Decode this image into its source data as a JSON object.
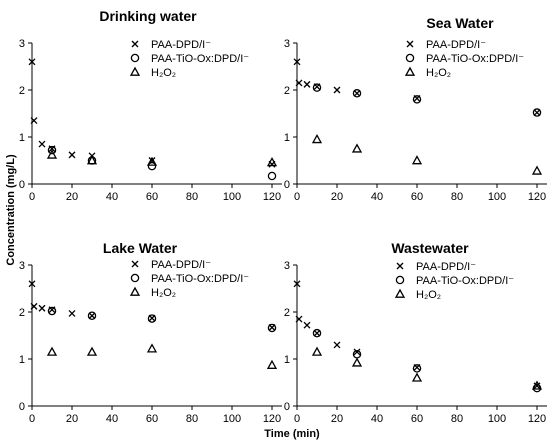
{
  "figure": {
    "ylabel": "Concentration (mg/L)",
    "xlabel": "Time (min)"
  },
  "legend": {
    "entries": [
      "PAA-DPD/I⁻",
      "PAA-TiO-Ox:DPD/I⁻",
      "H₂O₂"
    ]
  },
  "chart_data": [
    {
      "type": "scatter",
      "title": "Drinking water",
      "xlim": [
        0,
        125
      ],
      "ylim": [
        0,
        3
      ],
      "xticks": [
        0,
        20,
        40,
        60,
        80,
        100,
        120
      ],
      "yticks": [
        0,
        1,
        2,
        3
      ],
      "legend_position": "top-right",
      "series": [
        {
          "name": "PAA-DPD/I⁻",
          "marker": "x",
          "x": [
            0,
            1,
            5,
            10,
            20,
            30,
            60,
            120
          ],
          "y": [
            2.6,
            1.35,
            0.85,
            0.75,
            0.62,
            0.6,
            0.5,
            0.42
          ]
        },
        {
          "name": "PAA-TiO-Ox:DPD/I⁻",
          "marker": "circle",
          "x": [
            10,
            30,
            60,
            120
          ],
          "y": [
            0.72,
            0.5,
            0.38,
            0.17
          ]
        },
        {
          "name": "H₂O₂",
          "marker": "triangle",
          "x": [
            10,
            30,
            60,
            120
          ],
          "y": [
            0.62,
            0.5,
            0.47,
            0.46
          ]
        }
      ]
    },
    {
      "type": "scatter",
      "title": "Sea Water",
      "xlim": [
        0,
        125
      ],
      "ylim": [
        0,
        3
      ],
      "xticks": [
        0,
        20,
        40,
        60,
        80,
        100,
        120
      ],
      "yticks": [
        0,
        1,
        2,
        3
      ],
      "legend_position": "top-right",
      "series": [
        {
          "name": "PAA-DPD/I⁻",
          "marker": "x",
          "x": [
            0,
            1,
            5,
            10,
            20,
            30,
            60,
            120
          ],
          "y": [
            2.6,
            2.15,
            2.12,
            2.07,
            2.0,
            1.93,
            1.82,
            1.52
          ]
        },
        {
          "name": "PAA-TiO-Ox:DPD/I⁻",
          "marker": "circle",
          "x": [
            10,
            30,
            60,
            120
          ],
          "y": [
            2.05,
            1.93,
            1.8,
            1.52
          ]
        },
        {
          "name": "H₂O₂",
          "marker": "triangle",
          "x": [
            10,
            30,
            60,
            120
          ],
          "y": [
            0.95,
            0.75,
            0.5,
            0.28
          ]
        }
      ]
    },
    {
      "type": "scatter",
      "title": "Lake Water",
      "xlim": [
        0,
        125
      ],
      "ylim": [
        0,
        3
      ],
      "xticks": [
        0,
        20,
        40,
        60,
        80,
        100,
        120
      ],
      "yticks": [
        0,
        1,
        2,
        3
      ],
      "legend_position": "top-right",
      "series": [
        {
          "name": "PAA-DPD/I⁻",
          "marker": "x",
          "x": [
            0,
            1,
            5,
            10,
            20,
            30,
            60,
            120
          ],
          "y": [
            2.6,
            2.12,
            2.08,
            2.05,
            1.97,
            1.92,
            1.87,
            1.67
          ]
        },
        {
          "name": "PAA-TiO-Ox:DPD/I⁻",
          "marker": "circle",
          "x": [
            10,
            30,
            60,
            120
          ],
          "y": [
            2.02,
            1.92,
            1.86,
            1.66
          ]
        },
        {
          "name": "H₂O₂",
          "marker": "triangle",
          "x": [
            10,
            30,
            60,
            120
          ],
          "y": [
            1.15,
            1.15,
            1.22,
            0.87
          ]
        }
      ]
    },
    {
      "type": "scatter",
      "title": "Wastewater",
      "xlim": [
        0,
        125
      ],
      "ylim": [
        0,
        3
      ],
      "xticks": [
        0,
        20,
        40,
        60,
        80,
        100,
        120
      ],
      "yticks": [
        0,
        1,
        2,
        3
      ],
      "legend_position": "top-right",
      "series": [
        {
          "name": "PAA-DPD/I⁻",
          "marker": "x",
          "x": [
            0,
            1,
            5,
            10,
            20,
            30,
            60,
            120
          ],
          "y": [
            2.6,
            1.85,
            1.72,
            1.55,
            1.3,
            1.15,
            0.82,
            0.43
          ]
        },
        {
          "name": "PAA-TiO-Ox:DPD/I⁻",
          "marker": "circle",
          "x": [
            10,
            30,
            60,
            120
          ],
          "y": [
            1.55,
            1.1,
            0.8,
            0.38
          ]
        },
        {
          "name": "H₂O₂",
          "marker": "triangle",
          "x": [
            10,
            30,
            60,
            120
          ],
          "y": [
            1.15,
            0.92,
            0.6,
            0.43
          ]
        }
      ]
    }
  ]
}
